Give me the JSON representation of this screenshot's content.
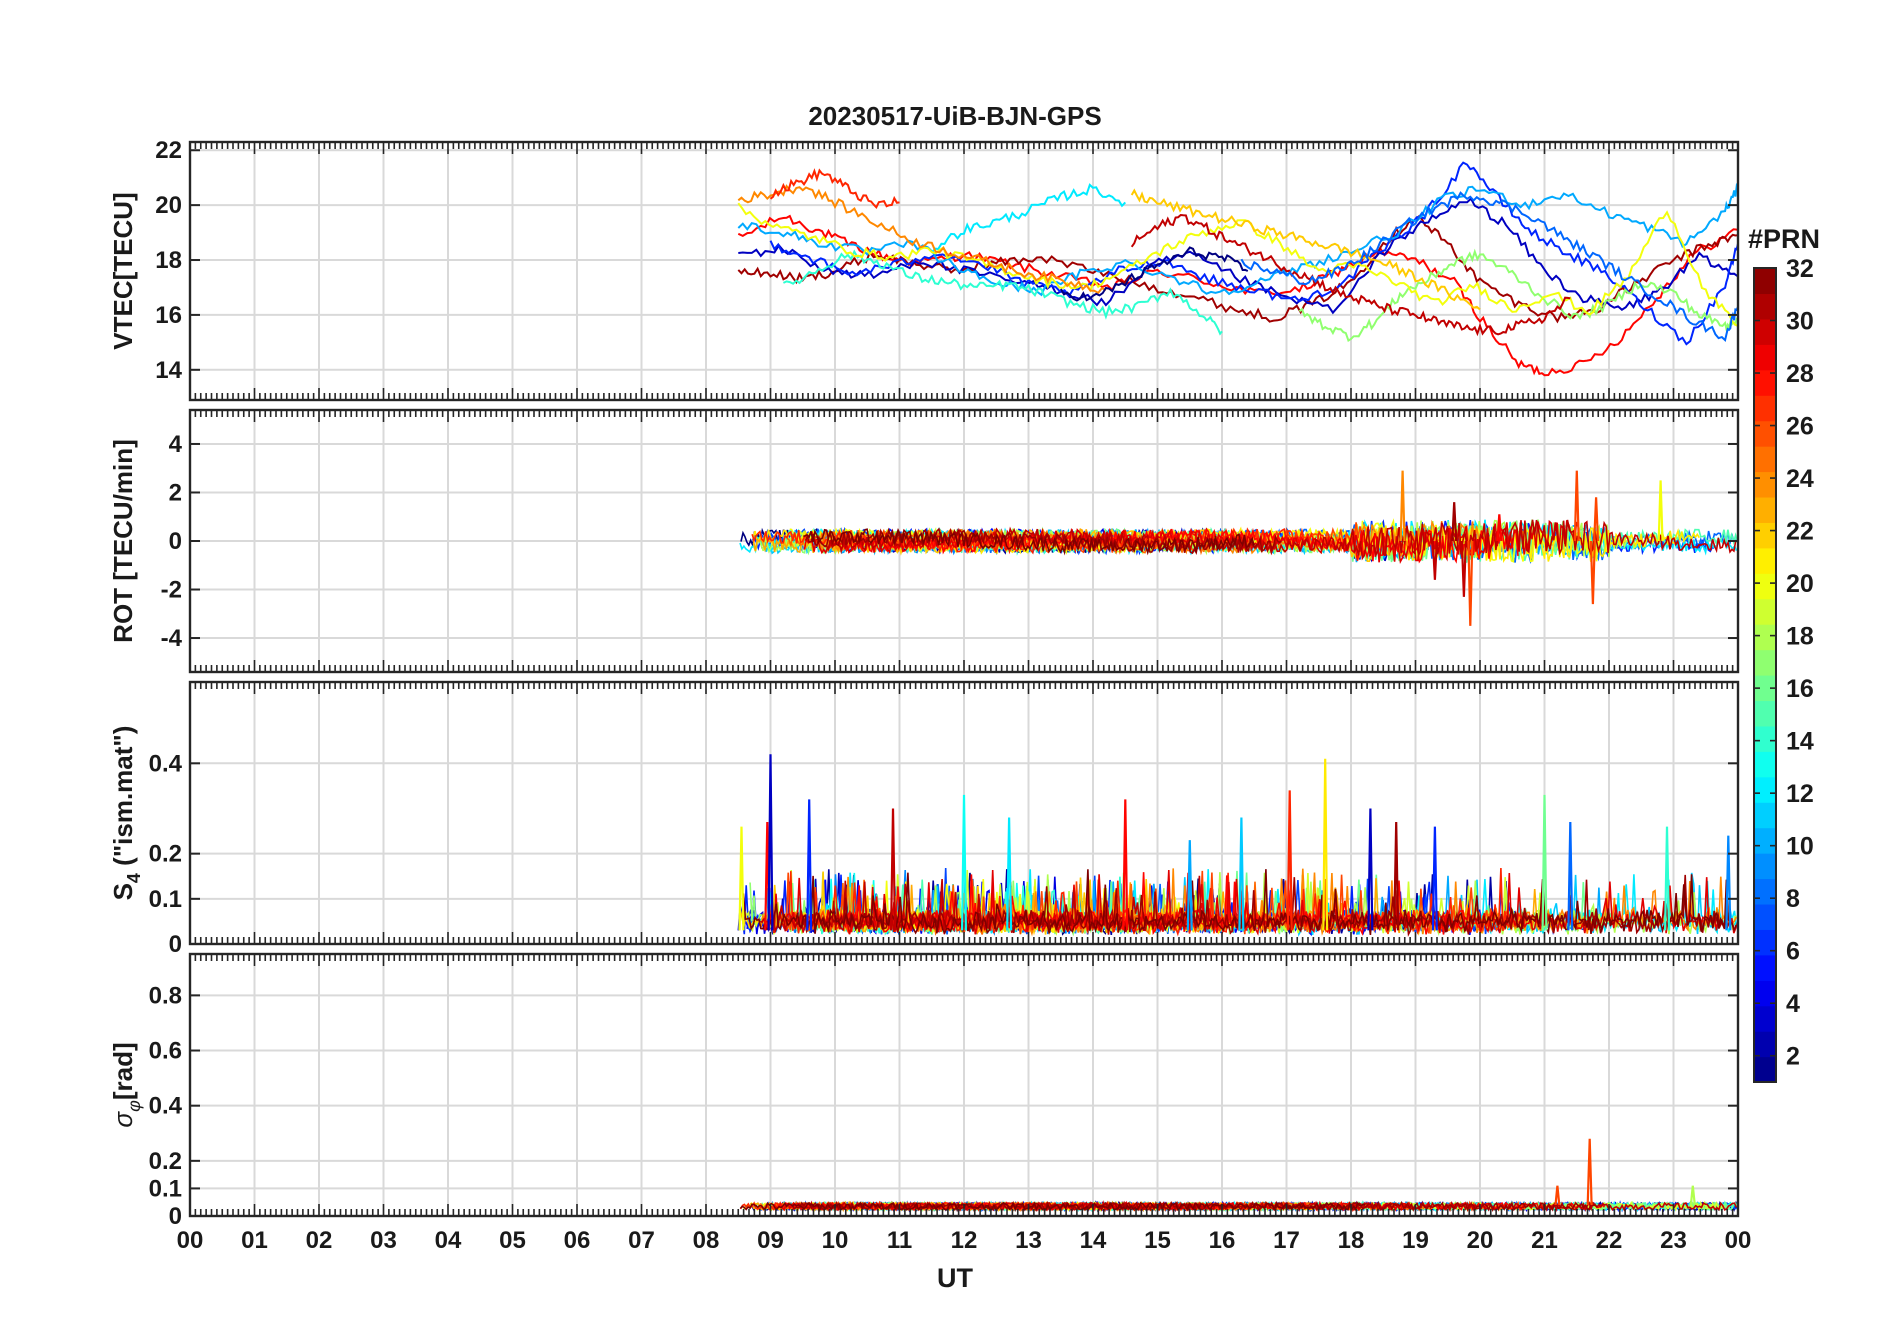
{
  "chart_data": {
    "title": "20230517-UiB-BJN-GPS",
    "type": "line",
    "xlabel": "UT",
    "x_tick_labels": [
      "00",
      "01",
      "02",
      "03",
      "04",
      "05",
      "06",
      "07",
      "08",
      "09",
      "10",
      "11",
      "12",
      "13",
      "14",
      "15",
      "16",
      "17",
      "18",
      "19",
      "20",
      "21",
      "22",
      "23",
      "00"
    ],
    "xlim": [
      0,
      24
    ],
    "data_start_hour": 8.5,
    "colorbar": {
      "label": "#PRN",
      "range": [
        1,
        32
      ],
      "ticks": [
        2,
        4,
        6,
        8,
        10,
        12,
        14,
        16,
        18,
        20,
        22,
        24,
        26,
        28,
        30,
        32
      ],
      "colormap": "jet"
    },
    "panels": [
      {
        "id": "vtec",
        "ylabel": "VTEC[TECU]",
        "ylim": [
          12.9,
          22.3
        ],
        "yticks": [
          14,
          16,
          18,
          20,
          22
        ],
        "ytick_labels": [
          "14",
          "16",
          "18",
          "20",
          "22"
        ],
        "grid": true,
        "series": [
          {
            "prn": 28,
            "x": [
              8.5,
              9.2,
              9.7,
              10.2,
              10.8,
              11.3,
              12.0,
              12.8,
              13.5,
              14.3,
              15.0,
              15.8,
              16.5,
              17.2,
              17.8,
              18.4,
              19.0,
              19.6,
              20.1,
              20.6,
              21.0,
              21.6,
              22.2,
              22.8,
              23.3,
              24.0
            ],
            "y": [
              18.8,
              19.6,
              19.1,
              18.6,
              18.1,
              17.9,
              18.2,
              17.8,
              17.4,
              17.0,
              17.6,
              17.2,
              16.8,
              16.9,
              17.6,
              18.3,
              18.0,
              17.2,
              15.6,
              14.2,
              13.9,
              14.2,
              15.2,
              16.8,
              18.2,
              19.1
            ]
          },
          {
            "prn": 31,
            "x": [
              8.5,
              9.0,
              9.5,
              10.0,
              10.6,
              11.2,
              11.8,
              12.5,
              13.2,
              14.0,
              14.8,
              15.5,
              16.2,
              16.8,
              17.4,
              18.0,
              18.5,
              19.0,
              19.5,
              20.0,
              20.6,
              21.2,
              21.8,
              22.4,
              23.0,
              23.6,
              24.0
            ],
            "y": [
              17.6,
              17.5,
              17.3,
              17.6,
              18.2,
              17.9,
              17.6,
              17.9,
              18.1,
              17.6,
              17.1,
              16.7,
              16.2,
              15.9,
              16.4,
              17.2,
              18.6,
              19.6,
              18.6,
              17.2,
              16.4,
              15.9,
              16.2,
              17.1,
              18.0,
              18.6,
              18.9
            ]
          },
          {
            "prn": 3,
            "x": [
              8.5,
              9.2,
              9.9,
              10.6,
              11.3,
              12.0,
              12.8,
              13.5,
              14.2,
              14.9,
              15.5,
              16.2,
              17.0,
              17.8,
              18.6,
              19.2,
              19.8,
              20.4,
              21.0,
              21.6,
              22.2,
              22.8,
              23.4,
              24.0
            ],
            "y": [
              18.2,
              18.4,
              17.6,
              17.4,
              18.0,
              17.6,
              17.2,
              16.9,
              16.4,
              17.8,
              18.2,
              17.4,
              16.6,
              16.2,
              18.6,
              19.4,
              20.2,
              19.3,
              17.6,
              16.6,
              16.2,
              16.9,
              18.1,
              17.4
            ]
          },
          {
            "prn": 6,
            "x": [
              9.0,
              9.6,
              10.2,
              10.9,
              11.6,
              12.3,
              13.0,
              13.7,
              14.4,
              15.1,
              15.8,
              16.5,
              17.2,
              17.9,
              18.6,
              19.2,
              19.8,
              20.3,
              20.8,
              21.4,
              22.0,
              22.6,
              23.2,
              23.8,
              24.0
            ],
            "y": [
              18.6,
              18.1,
              17.5,
              17.8,
              18.3,
              17.8,
              17.1,
              16.8,
              17.6,
              18.0,
              17.3,
              16.9,
              16.5,
              17.2,
              18.6,
              19.8,
              21.6,
              20.2,
              19.0,
              18.2,
              17.4,
              16.2,
              15.0,
              17.1,
              18.6
            ]
          },
          {
            "prn": 10,
            "x": [
              8.5,
              9.2,
              9.8,
              10.5,
              11.2,
              12.0,
              12.6,
              13.2,
              13.8,
              14.5,
              15.2,
              15.9,
              16.6,
              17.3,
              18.0,
              18.8,
              19.4,
              20.0,
              20.7,
              21.3,
              22.0,
              22.6,
              23.2,
              23.8,
              24.0
            ],
            "y": [
              19.3,
              19.0,
              18.6,
              18.3,
              18.6,
              17.6,
              17.1,
              16.9,
              17.5,
              17.9,
              17.4,
              16.8,
              17.2,
              17.8,
              18.3,
              19.1,
              20.2,
              20.6,
              20.0,
              20.4,
              19.7,
              19.2,
              18.6,
              19.8,
              20.6
            ]
          },
          {
            "prn": 12,
            "x": [
              11.5,
              12.0,
              12.5,
              13.0,
              13.5,
              14.0,
              14.5
            ],
            "y": [
              18.4,
              19.1,
              19.4,
              19.8,
              20.3,
              20.6,
              20.1
            ]
          },
          {
            "prn": 14,
            "x": [
              9.2,
              9.7,
              10.2,
              10.7,
              11.2,
              11.7,
              12.2,
              12.7,
              13.2,
              13.7,
              14.2,
              14.7,
              15.2,
              15.7,
              16.0
            ],
            "y": [
              17.0,
              17.6,
              18.2,
              17.9,
              17.4,
              17.2,
              17.0,
              17.1,
              16.8,
              16.4,
              16.1,
              16.3,
              16.9,
              16.0,
              15.4
            ]
          },
          {
            "prn": 17,
            "x": [
              17.2,
              17.6,
              18.0,
              18.4,
              18.8,
              19.2,
              19.6,
              20.0,
              20.5,
              21.0,
              21.5,
              22.0,
              22.5,
              23.0,
              23.4,
              23.8,
              24.0
            ],
            "y": [
              16.1,
              15.6,
              15.2,
              15.8,
              16.8,
              17.3,
              17.9,
              18.2,
              17.5,
              16.6,
              15.9,
              16.4,
              17.2,
              16.8,
              16.0,
              15.6,
              15.9
            ]
          },
          {
            "prn": 20,
            "x": [
              8.5,
              9.1,
              9.7,
              10.3,
              10.9,
              11.5,
              12.1,
              12.7,
              13.3,
              13.9,
              14.5,
              15.1,
              15.7,
              16.3,
              16.9,
              17.5,
              18.1,
              18.7,
              19.3,
              19.9,
              20.5,
              21.1,
              21.7,
              22.3,
              22.9,
              23.5,
              24.0
            ],
            "y": [
              19.9,
              19.2,
              18.8,
              18.3,
              18.1,
              18.4,
              18.0,
              17.6,
              17.2,
              17.0,
              17.6,
              18.4,
              19.0,
              19.4,
              18.6,
              17.6,
              17.8,
              17.2,
              16.4,
              17.1,
              16.2,
              16.8,
              16.1,
              17.4,
              19.9,
              16.8,
              15.6
            ]
          },
          {
            "prn": 22,
            "x": [
              14.6,
              15.0,
              15.5,
              16.0,
              16.5,
              17.0,
              17.5,
              18.0,
              18.5,
              19.0,
              19.5,
              20.0
            ],
            "y": [
              20.4,
              20.1,
              19.8,
              19.5,
              19.2,
              18.9,
              18.6,
              18.3,
              17.9,
              17.4,
              16.8,
              16.2
            ]
          },
          {
            "prn": 24,
            "x": [
              8.5,
              9.0,
              9.5,
              10.0,
              10.6,
              11.2,
              11.8,
              12.4,
              13.0,
              13.6,
              14.2
            ],
            "y": [
              20.2,
              20.4,
              20.7,
              20.1,
              19.4,
              18.7,
              18.3,
              17.9,
              17.5,
              17.2,
              16.9
            ]
          },
          {
            "prn": 27,
            "x": [
              9.0,
              9.4,
              9.8,
              10.2,
              10.6,
              11.0
            ],
            "y": [
              20.4,
              20.8,
              21.2,
              20.6,
              20.0,
              20.1
            ]
          },
          {
            "prn": 30,
            "x": [
              14.6,
              15.0,
              15.4,
              15.8,
              16.2,
              16.6,
              17.0,
              17.4,
              17.8,
              18.2,
              18.6,
              19.0,
              19.4,
              19.8,
              20.2,
              20.6,
              21.0,
              21.4
            ],
            "y": [
              18.6,
              19.2,
              19.6,
              19.1,
              18.6,
              18.2,
              17.7,
              17.3,
              16.8,
              16.5,
              16.2,
              16.0,
              15.7,
              15.5,
              15.4,
              15.6,
              15.9,
              16.6
            ]
          },
          {
            "prn": 1,
            "x": [
              13.5,
              14.0,
              14.5,
              15.0,
              15.5,
              16.0,
              16.4
            ],
            "y": [
              16.8,
              16.6,
              17.2,
              17.8,
              18.3,
              18.1,
              17.6
            ]
          },
          {
            "prn": 8,
            "x": [
              16.3,
              16.8,
              17.3,
              17.8,
              18.3,
              18.8,
              19.3,
              19.8,
              20.3,
              20.8,
              21.3,
              21.8,
              22.3,
              22.8,
              23.3,
              23.8,
              24.0
            ],
            "y": [
              17.9,
              17.6,
              17.2,
              17.6,
              18.3,
              19.2,
              19.9,
              20.4,
              20.1,
              19.6,
              18.8,
              18.1,
              17.3,
              16.6,
              15.8,
              15.2,
              16.3
            ]
          }
        ]
      },
      {
        "id": "rot",
        "ylabel": "ROT [TECU/min]",
        "ylim": [
          -5.4,
          5.4
        ],
        "yticks": [
          -4,
          -2,
          0,
          2,
          4
        ],
        "ytick_labels": [
          "-4",
          "-2",
          "0",
          "2",
          "4"
        ],
        "grid": true,
        "noise_amplitude": 0.3,
        "spikes": [
          {
            "x": 18.8,
            "y": 2.9,
            "prn": 24
          },
          {
            "x": 19.3,
            "y": -1.6,
            "prn": 30
          },
          {
            "x": 19.6,
            "y": 1.6,
            "prn": 31
          },
          {
            "x": 19.75,
            "y": -2.3,
            "prn": 30
          },
          {
            "x": 19.85,
            "y": -3.5,
            "prn": 26
          },
          {
            "x": 20.3,
            "y": 1.1,
            "prn": 28
          },
          {
            "x": 21.5,
            "y": 2.9,
            "prn": 26
          },
          {
            "x": 21.75,
            "y": -2.6,
            "prn": 26
          },
          {
            "x": 21.8,
            "y": 1.8,
            "prn": 26
          },
          {
            "x": 22.8,
            "y": 2.5,
            "prn": 20
          }
        ]
      },
      {
        "id": "s4",
        "ylabel": "S4 (\"ism.mat\")",
        "ylabel_main": "S",
        "ylabel_sub": "4",
        "ylabel_rest": "(\"ism.mat\")",
        "ylim": [
          0,
          0.58
        ],
        "yticks": [
          0,
          0.1,
          0.2,
          0.4
        ],
        "ytick_labels": [
          "0",
          "0.1",
          "0.2",
          "0.4"
        ],
        "grid": true,
        "spikes": [
          {
            "x": 8.55,
            "y": 0.26,
            "prn": 20
          },
          {
            "x": 8.95,
            "y": 0.27,
            "prn": 28
          },
          {
            "x": 9.0,
            "y": 0.42,
            "prn": 3
          },
          {
            "x": 9.6,
            "y": 0.32,
            "prn": 6
          },
          {
            "x": 10.9,
            "y": 0.3,
            "prn": 30
          },
          {
            "x": 12.0,
            "y": 0.33,
            "prn": 13
          },
          {
            "x": 12.7,
            "y": 0.28,
            "prn": 12
          },
          {
            "x": 14.5,
            "y": 0.32,
            "prn": 28
          },
          {
            "x": 15.5,
            "y": 0.23,
            "prn": 10
          },
          {
            "x": 16.3,
            "y": 0.28,
            "prn": 11
          },
          {
            "x": 17.05,
            "y": 0.34,
            "prn": 27
          },
          {
            "x": 17.6,
            "y": 0.41,
            "prn": 21
          },
          {
            "x": 18.3,
            "y": 0.3,
            "prn": 3
          },
          {
            "x": 18.7,
            "y": 0.27,
            "prn": 31
          },
          {
            "x": 19.3,
            "y": 0.26,
            "prn": 6
          },
          {
            "x": 21.0,
            "y": 0.33,
            "prn": 16
          },
          {
            "x": 21.4,
            "y": 0.27,
            "prn": 8
          },
          {
            "x": 22.9,
            "y": 0.26,
            "prn": 14
          },
          {
            "x": 23.85,
            "y": 0.24,
            "prn": 9
          }
        ]
      },
      {
        "id": "sigphi",
        "ylabel": "σφ[rad]",
        "ylabel_main": "σ",
        "ylabel_sub": "φ",
        "ylabel_rest": "[rad]",
        "ylim": [
          0,
          0.95
        ],
        "yticks": [
          0,
          0.1,
          0.2,
          0.4,
          0.6,
          0.8
        ],
        "ytick_labels": [
          "0",
          "0.1",
          "0.2",
          "0.4",
          "0.6",
          "0.8"
        ],
        "grid": true,
        "spikes": [
          {
            "x": 21.7,
            "y": 0.28,
            "prn": 26
          },
          {
            "x": 21.2,
            "y": 0.11,
            "prn": 26
          },
          {
            "x": 23.3,
            "y": 0.11,
            "prn": 18
          }
        ]
      }
    ]
  }
}
